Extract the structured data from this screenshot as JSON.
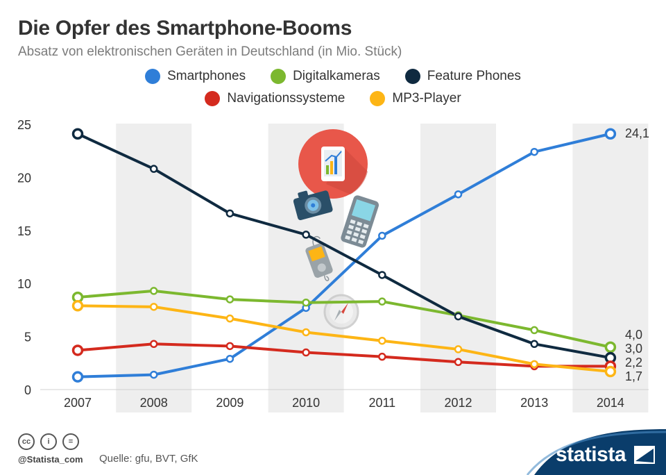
{
  "header": {
    "title": "Die Opfer des Smartphone-Booms",
    "subtitle": "Absatz von elektronischen Geräten in Deutschland (in Mio. Stück)"
  },
  "footer": {
    "handle": "@Statista_com",
    "source": "Quelle: gfu, BVT, GfK",
    "brand": "statista",
    "license_icons": [
      "cc-icon",
      "by-icon",
      "nd-icon"
    ]
  },
  "colors": {
    "background": "#ffffff",
    "stripe": "#eeeeee",
    "brand_blue": "#0a3d6b"
  },
  "chart_data": {
    "type": "line",
    "title": "Die Opfer des Smartphone-Booms",
    "subtitle": "Absatz von elektronischen Geräten in Deutschland (in Mio. Stück)",
    "categories": [
      "2007",
      "2008",
      "2009",
      "2010",
      "2011",
      "2012",
      "2013",
      "2014"
    ],
    "y_ticks": [
      "0",
      "5",
      "10",
      "15",
      "20",
      "25"
    ],
    "ylim": [
      0,
      25
    ],
    "grid": false,
    "legend_placement": "top",
    "series": [
      {
        "name": "Smartphones",
        "color": "#2f7ed8",
        "values": [
          1.2,
          1.4,
          2.9,
          7.7,
          14.5,
          18.4,
          22.4,
          24.1
        ],
        "end_label": "24,1"
      },
      {
        "name": "Digitalkameras",
        "color": "#7cb82f",
        "values": [
          8.7,
          9.3,
          8.5,
          8.2,
          8.3,
          7.0,
          5.6,
          4.0
        ],
        "end_label": "4,0"
      },
      {
        "name": "Feature Phones",
        "color": "#0f2a40",
        "values": [
          24.1,
          20.8,
          16.6,
          14.6,
          10.8,
          6.9,
          4.3,
          3.0
        ],
        "end_label": "3,0"
      },
      {
        "name": "Navigationssysteme",
        "color": "#d42a1e",
        "values": [
          3.7,
          4.3,
          4.1,
          3.5,
          3.1,
          2.6,
          2.2,
          2.2
        ],
        "end_label": "2,2"
      },
      {
        "name": "MP3-Player",
        "color": "#fdb515",
        "values": [
          7.9,
          7.8,
          6.7,
          5.4,
          4.6,
          3.8,
          2.4,
          1.7
        ],
        "end_label": "1,7"
      }
    ],
    "legend_rows": [
      [
        0,
        1,
        2
      ],
      [
        3,
        4
      ]
    ]
  }
}
